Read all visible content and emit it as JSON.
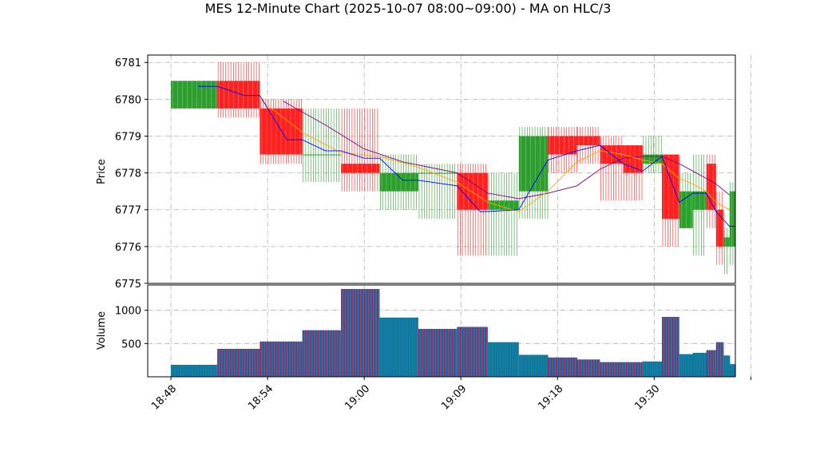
{
  "chart_data": [
    {
      "type": "candlestick",
      "title": "MES 12-Minute Chart (2025-10-07 08:00~09:00) - MA on HLC/3",
      "ylabel": "Price",
      "ylim": [
        6775,
        6781.2
      ],
      "yticks": [
        6775,
        6776,
        6777,
        6778,
        6779,
        6780,
        6781
      ],
      "xlim": [
        -0.6,
        14.6
      ],
      "x_ticks": [
        {
          "pos": 0,
          "label": "18:48"
        },
        {
          "pos": 2.5,
          "label": "18:54"
        },
        {
          "pos": 5,
          "label": "19:00"
        },
        {
          "pos": 7.5,
          "label": "19:09"
        },
        {
          "pos": 10,
          "label": "19:18"
        },
        {
          "pos": 12.5,
          "label": "19:30"
        },
        {
          "pos": 15,
          "label": ""
        }
      ],
      "grid": true,
      "colors": {
        "up": "#2ca02c",
        "down": "#ff2020",
        "ma_fast": "#0000ff",
        "ma_mid": "#ffa500",
        "ma_slow": "#800080"
      },
      "candles": [
        {
          "x0": 0.0,
          "x1": 1.2,
          "open": 6779.75,
          "high": 6780.5,
          "low": 6779.75,
          "close": 6780.5
        },
        {
          "x0": 1.2,
          "x1": 2.3,
          "open": 6780.5,
          "high": 6781.0,
          "low": 6779.5,
          "close": 6779.75
        },
        {
          "x0": 2.3,
          "x1": 3.4,
          "open": 6779.75,
          "high": 6780.0,
          "low": 6778.25,
          "close": 6778.5
        },
        {
          "x0": 3.4,
          "x1": 4.4,
          "open": 6778.5,
          "high": 6779.75,
          "low": 6777.75,
          "close": 6778.5
        },
        {
          "x0": 4.4,
          "x1": 5.4,
          "open": 6778.25,
          "high": 6779.75,
          "low": 6777.5,
          "close": 6778.0
        },
        {
          "x0": 5.4,
          "x1": 6.4,
          "open": 6777.5,
          "high": 6778.5,
          "low": 6777.0,
          "close": 6778.0
        },
        {
          "x0": 6.4,
          "x1": 7.4,
          "open": 6778.0,
          "high": 6778.25,
          "low": 6776.75,
          "close": 6778.0
        },
        {
          "x0": 7.4,
          "x1": 8.2,
          "open": 6778.0,
          "high": 6778.25,
          "low": 6775.75,
          "close": 6777.0
        },
        {
          "x0": 8.2,
          "x1": 9.0,
          "open": 6777.0,
          "high": 6778.0,
          "low": 6775.75,
          "close": 6777.25
        },
        {
          "x0": 9.0,
          "x1": 9.75,
          "open": 6777.5,
          "high": 6779.25,
          "low": 6776.75,
          "close": 6779.0
        },
        {
          "x0": 9.75,
          "x1": 10.5,
          "open": 6779.0,
          "high": 6779.25,
          "low": 6778.0,
          "close": 6778.5
        },
        {
          "x0": 10.5,
          "x1": 11.1,
          "open": 6779.0,
          "high": 6779.25,
          "low": 6778.25,
          "close": 6778.75
        },
        {
          "x0": 11.1,
          "x1": 11.7,
          "open": 6778.75,
          "high": 6779.0,
          "low": 6777.25,
          "close": 6778.25
        },
        {
          "x0": 11.7,
          "x1": 12.2,
          "open": 6778.75,
          "high": 6778.75,
          "low": 6777.25,
          "close": 6778.0
        },
        {
          "x0": 12.2,
          "x1": 12.7,
          "open": 6778.25,
          "high": 6779.0,
          "low": 6778.0,
          "close": 6778.5
        },
        {
          "x0": 12.7,
          "x1": 13.15,
          "open": 6778.5,
          "high": 6778.5,
          "low": 6776.0,
          "close": 6776.75
        },
        {
          "x0": 13.15,
          "x1": 13.5,
          "open": 6776.5,
          "high": 6778.0,
          "low": 6776.5,
          "close": 6777.5
        },
        {
          "x0": 13.5,
          "x1": 13.85,
          "open": 6777.0,
          "high": 6778.5,
          "low": 6775.75,
          "close": 6777.5
        },
        {
          "x0": 13.85,
          "x1": 14.1,
          "open": 6778.25,
          "high": 6778.5,
          "low": 6776.5,
          "close": 6777.0
        },
        {
          "x0": 14.1,
          "x1": 14.3,
          "open": 6777.0,
          "high": 6777.5,
          "low": 6775.5,
          "close": 6776.0
        },
        {
          "x0": 14.3,
          "x1": 14.45,
          "open": 6776.0,
          "high": 6776.5,
          "low": 6775.25,
          "close": 6776.25
        },
        {
          "x0": 14.45,
          "x1": 14.6,
          "open": 6776.0,
          "high": 6777.75,
          "low": 6775.5,
          "close": 6777.5
        }
      ],
      "ma_fast": [
        {
          "x": 0.7,
          "y": 6780.35
        },
        {
          "x": 1.2,
          "y": 6780.35
        },
        {
          "x": 1.9,
          "y": 6780.1
        },
        {
          "x": 2.3,
          "y": 6780.1
        },
        {
          "x": 3.0,
          "y": 6778.9
        },
        {
          "x": 3.4,
          "y": 6778.9
        },
        {
          "x": 4.0,
          "y": 6778.6
        },
        {
          "x": 4.4,
          "y": 6778.6
        },
        {
          "x": 5.0,
          "y": 6778.4
        },
        {
          "x": 5.4,
          "y": 6778.4
        },
        {
          "x": 6.0,
          "y": 6777.8
        },
        {
          "x": 6.4,
          "y": 6777.8
        },
        {
          "x": 7.4,
          "y": 6777.65
        },
        {
          "x": 8.0,
          "y": 6776.95
        },
        {
          "x": 8.2,
          "y": 6776.95
        },
        {
          "x": 9.0,
          "y": 6777.0
        },
        {
          "x": 9.75,
          "y": 6778.35
        },
        {
          "x": 10.5,
          "y": 6778.6
        },
        {
          "x": 11.1,
          "y": 6778.75
        },
        {
          "x": 11.7,
          "y": 6778.25
        },
        {
          "x": 12.2,
          "y": 6778.05
        },
        {
          "x": 12.7,
          "y": 6778.45
        },
        {
          "x": 13.15,
          "y": 6777.2
        },
        {
          "x": 13.5,
          "y": 6777.45
        },
        {
          "x": 13.85,
          "y": 6777.45
        },
        {
          "x": 14.1,
          "y": 6776.95
        },
        {
          "x": 14.45,
          "y": 6776.55
        },
        {
          "x": 14.6,
          "y": 6776.55
        }
      ],
      "ma_mid": [
        {
          "x": 2.3,
          "y": 6780.0
        },
        {
          "x": 3.4,
          "y": 6779.1
        },
        {
          "x": 4.4,
          "y": 6778.55
        },
        {
          "x": 5.4,
          "y": 6778.45
        },
        {
          "x": 6.4,
          "y": 6778.15
        },
        {
          "x": 7.4,
          "y": 6777.75
        },
        {
          "x": 8.2,
          "y": 6777.2
        },
        {
          "x": 9.0,
          "y": 6776.95
        },
        {
          "x": 9.75,
          "y": 6777.5
        },
        {
          "x": 10.5,
          "y": 6778.3
        },
        {
          "x": 11.1,
          "y": 6778.6
        },
        {
          "x": 11.7,
          "y": 6778.5
        },
        {
          "x": 12.2,
          "y": 6778.35
        },
        {
          "x": 12.7,
          "y": 6778.25
        },
        {
          "x": 13.15,
          "y": 6777.85
        },
        {
          "x": 13.5,
          "y": 6777.7
        },
        {
          "x": 13.85,
          "y": 6777.5
        },
        {
          "x": 14.1,
          "y": 6777.2
        },
        {
          "x": 14.45,
          "y": 6777.0
        }
      ],
      "ma_slow": [
        {
          "x": 2.9,
          "y": 6779.95
        },
        {
          "x": 4.0,
          "y": 6779.3
        },
        {
          "x": 5.0,
          "y": 6778.65
        },
        {
          "x": 6.0,
          "y": 6778.3
        },
        {
          "x": 7.4,
          "y": 6778.0
        },
        {
          "x": 8.2,
          "y": 6777.45
        },
        {
          "x": 9.0,
          "y": 6777.3
        },
        {
          "x": 9.75,
          "y": 6777.45
        },
        {
          "x": 10.5,
          "y": 6777.65
        },
        {
          "x": 11.1,
          "y": 6778.1
        },
        {
          "x": 11.7,
          "y": 6778.4
        },
        {
          "x": 12.2,
          "y": 6778.45
        },
        {
          "x": 12.7,
          "y": 6778.45
        },
        {
          "x": 13.15,
          "y": 6778.25
        },
        {
          "x": 13.5,
          "y": 6778.05
        },
        {
          "x": 13.85,
          "y": 6777.85
        },
        {
          "x": 14.1,
          "y": 6777.7
        },
        {
          "x": 14.45,
          "y": 6777.4
        }
      ]
    },
    {
      "type": "bar",
      "ylabel": "Volume",
      "ylim": [
        0,
        1380
      ],
      "yticks": [
        500,
        1000
      ],
      "grid": true,
      "colors": {
        "edge_up": "#008080",
        "edge_down": "#a0204a",
        "fill": "#1f77b4"
      },
      "bars": [
        {
          "x0": 0.0,
          "x1": 1.2,
          "value": 180,
          "dir": "up"
        },
        {
          "x0": 1.2,
          "x1": 2.3,
          "value": 420,
          "dir": "down"
        },
        {
          "x0": 2.3,
          "x1": 3.4,
          "value": 530,
          "dir": "down"
        },
        {
          "x0": 3.4,
          "x1": 4.4,
          "value": 700,
          "dir": "down"
        },
        {
          "x0": 4.4,
          "x1": 5.4,
          "value": 1320,
          "dir": "down"
        },
        {
          "x0": 5.4,
          "x1": 6.4,
          "value": 890,
          "dir": "up"
        },
        {
          "x0": 6.4,
          "x1": 7.4,
          "value": 720,
          "dir": "down"
        },
        {
          "x0": 7.4,
          "x1": 8.2,
          "value": 750,
          "dir": "down"
        },
        {
          "x0": 8.2,
          "x1": 9.0,
          "value": 520,
          "dir": "up"
        },
        {
          "x0": 9.0,
          "x1": 9.75,
          "value": 330,
          "dir": "up"
        },
        {
          "x0": 9.75,
          "x1": 10.5,
          "value": 290,
          "dir": "down"
        },
        {
          "x0": 10.5,
          "x1": 11.1,
          "value": 260,
          "dir": "down"
        },
        {
          "x0": 11.1,
          "x1": 11.7,
          "value": 220,
          "dir": "down"
        },
        {
          "x0": 11.7,
          "x1": 12.2,
          "value": 220,
          "dir": "down"
        },
        {
          "x0": 12.2,
          "x1": 12.7,
          "value": 230,
          "dir": "up"
        },
        {
          "x0": 12.7,
          "x1": 13.15,
          "value": 900,
          "dir": "down"
        },
        {
          "x0": 13.15,
          "x1": 13.5,
          "value": 340,
          "dir": "up"
        },
        {
          "x0": 13.5,
          "x1": 13.85,
          "value": 360,
          "dir": "up"
        },
        {
          "x0": 13.85,
          "x1": 14.1,
          "value": 400,
          "dir": "down"
        },
        {
          "x0": 14.1,
          "x1": 14.3,
          "value": 520,
          "dir": "down"
        },
        {
          "x0": 14.3,
          "x1": 14.45,
          "value": 320,
          "dir": "up"
        },
        {
          "x0": 14.45,
          "x1": 14.6,
          "value": 190,
          "dir": "up"
        }
      ]
    }
  ]
}
